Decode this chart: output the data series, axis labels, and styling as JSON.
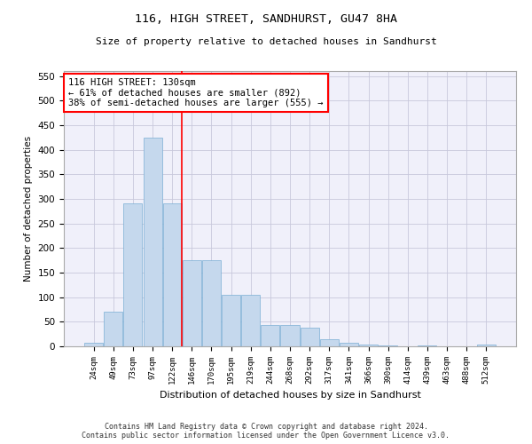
{
  "title1": "116, HIGH STREET, SANDHURST, GU47 8HA",
  "title2": "Size of property relative to detached houses in Sandhurst",
  "xlabel": "Distribution of detached houses by size in Sandhurst",
  "ylabel": "Number of detached properties",
  "bar_values": [
    7,
    70,
    290,
    425,
    290,
    175,
    175,
    105,
    105,
    43,
    43,
    38,
    15,
    7,
    3,
    1,
    0,
    1,
    0,
    0,
    3
  ],
  "categories": [
    "24sqm",
    "49sqm",
    "73sqm",
    "97sqm",
    "122sqm",
    "146sqm",
    "170sqm",
    "195sqm",
    "219sqm",
    "244sqm",
    "268sqm",
    "292sqm",
    "317sqm",
    "341sqm",
    "366sqm",
    "390sqm",
    "414sqm",
    "439sqm",
    "463sqm",
    "488sqm",
    "512sqm"
  ],
  "bar_color": "#c5d8ed",
  "bar_edge_color": "#7aafd4",
  "vline_x": 4.5,
  "vline_color": "red",
  "annotation_text": "116 HIGH STREET: 130sqm\n← 61% of detached houses are smaller (892)\n38% of semi-detached houses are larger (555) →",
  "annotation_box_color": "white",
  "annotation_box_edge": "red",
  "ylim": [
    0,
    560
  ],
  "yticks": [
    0,
    50,
    100,
    150,
    200,
    250,
    300,
    350,
    400,
    450,
    500,
    550
  ],
  "footer": "Contains HM Land Registry data © Crown copyright and database right 2024.\nContains public sector information licensed under the Open Government Licence v3.0.",
  "bg_color": "#f0f0fa",
  "grid_color": "#c8c8dc"
}
